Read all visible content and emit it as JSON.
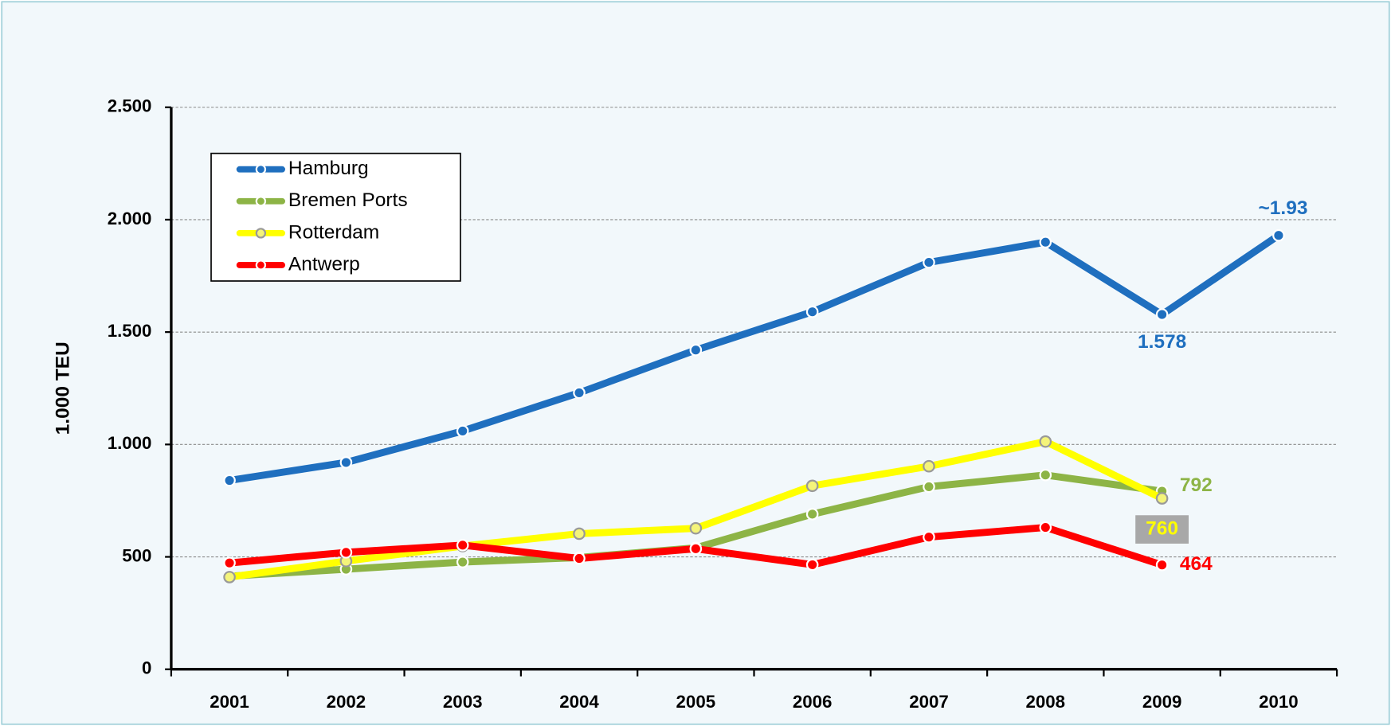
{
  "chart_data": {
    "type": "line",
    "y_label": "1.000 TEU",
    "categories": [
      "2001",
      "2002",
      "2003",
      "2004",
      "2005",
      "2006",
      "2007",
      "2008",
      "2009",
      "2010"
    ],
    "series": [
      {
        "name": "Hamburg",
        "color": "#1f6fbf",
        "values": [
          840,
          920,
          1060,
          1230,
          1420,
          1590,
          1810,
          1900,
          1578,
          1930
        ],
        "value_labels": [
          null,
          null,
          null,
          null,
          null,
          null,
          null,
          null,
          "1.578",
          "~1.93"
        ]
      },
      {
        "name": "Bremen Ports",
        "color": "#8db446",
        "values": [
          414,
          445,
          477,
          497,
          540,
          690,
          812,
          864,
          792,
          null
        ],
        "value_labels": [
          null,
          null,
          null,
          null,
          null,
          null,
          null,
          null,
          "792",
          null
        ]
      },
      {
        "name": "Rotterdam",
        "color": "#ffff00",
        "values": [
          410,
          481,
          548,
          603,
          627,
          816,
          903,
          1013,
          760,
          null
        ],
        "value_labels": [
          null,
          null,
          null,
          null,
          null,
          null,
          null,
          null,
          "760",
          null
        ]
      },
      {
        "name": "Antwerp",
        "color": "#ff0000",
        "values": [
          473,
          520,
          552,
          493,
          536,
          465,
          588,
          631,
          464,
          null
        ],
        "value_labels": [
          null,
          null,
          null,
          null,
          null,
          null,
          null,
          null,
          "464",
          null
        ]
      }
    ],
    "ylim": [
      0,
      2500
    ],
    "yticks": [
      0,
      500,
      {
        "value": 1000,
        "label": "1.000"
      },
      {
        "value": 1500,
        "label": "1.500"
      },
      {
        "value": 2000,
        "label": "2.000"
      },
      {
        "value": 2500,
        "label": "2.500"
      }
    ],
    "grid": true,
    "legend": "upper left"
  }
}
